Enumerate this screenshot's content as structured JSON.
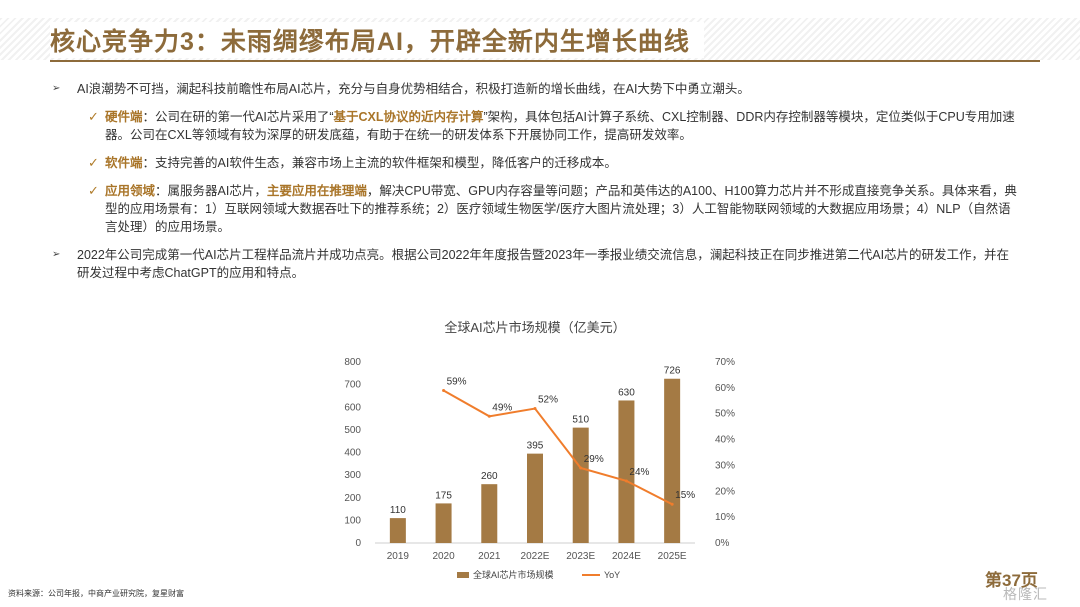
{
  "header": {
    "title": "核心竞争力3：未雨绸缪布局AI，开辟全新内生增长曲线"
  },
  "bullets": [
    {
      "text": "AI浪潮势不可挡，澜起科技前瞻性布局AI芯片，充分与自身优势相结合，积极打造新的增长曲线，在AI大势下中勇立潮头。"
    },
    {
      "text": "2022年公司完成第一代AI芯片工程样品流片并成功点亮。根据公司2022年年度报告暨2023年一季报业绩交流信息，澜起科技正在同步推进第二代AI芯片的研发工作，并在研发过程中考虑ChatGPT的应用和特点。"
    }
  ],
  "subpoints": [
    {
      "key": "硬件端",
      "text_a": "：公司在研的第一代AI芯片采用了“",
      "highlight": "基于CXL协议的近内存计算",
      "text_b": "”架构，具体包括AI计算子系统、CXL控制器、DDR内存控制器等模块，定位类似于CPU专用加速器。公司在CXL等领域有较为深厚的研发底蕴，有助于在统一的研发体系下开展协同工作，提高研发效率。"
    },
    {
      "key": "软件端",
      "text_a": "：支持完善的AI软件生态，兼容市场上主流的软件框架和模型，降低客户的迁移成本。",
      "highlight": "",
      "text_b": ""
    },
    {
      "key": "应用领域",
      "text_a": "：属服务器AI芯片，",
      "highlight": "主要应用在推理端",
      "text_b": "，解决CPU带宽、GPU内存容量等问题；产品和英伟达的A100、H100算力芯片并不形成直接竞争关系。具体来看，典型的应用场景有：1）互联网领域大数据吞吐下的推荐系统；2）医疗领域生物医学/医疗大图片流处理；3）人工智能物联网领域的大数据应用场景；4）NLP（自然语言处理）的应用场景。"
    }
  ],
  "chart_data": {
    "type": "bar",
    "title": "全球AI芯片市场规模（亿美元）",
    "categories": [
      "2019",
      "2020",
      "2021",
      "2022E",
      "2023E",
      "2024E",
      "2025E"
    ],
    "series": [
      {
        "name": "全球AI芯片市场规模",
        "type": "bar",
        "axis": "left",
        "values": [
          110,
          175,
          260,
          395,
          510,
          630,
          726
        ]
      },
      {
        "name": "YoY",
        "type": "line",
        "axis": "right",
        "values": [
          null,
          0.59,
          0.49,
          0.52,
          0.29,
          0.24,
          0.15
        ],
        "labels": [
          "",
          "59%",
          "49%",
          "52%",
          "29%",
          "24%",
          "15%"
        ]
      }
    ],
    "ylim": [
      0,
      800
    ],
    "y_ticks": [
      "0",
      "100",
      "200",
      "300",
      "400",
      "500",
      "600",
      "700",
      "800"
    ],
    "y2lim": [
      0,
      0.7
    ],
    "y2_ticks": [
      "0%",
      "10%",
      "20%",
      "30%",
      "40%",
      "50%",
      "60%",
      "70%"
    ],
    "legend_position": "bottom",
    "colors": {
      "bar": "#a47a44",
      "line": "#f07d2c"
    }
  },
  "footer": {
    "source": "资料来源：公司年报，中商产业研究院，复星财富",
    "page": "第37页",
    "watermark": "格隆汇"
  }
}
